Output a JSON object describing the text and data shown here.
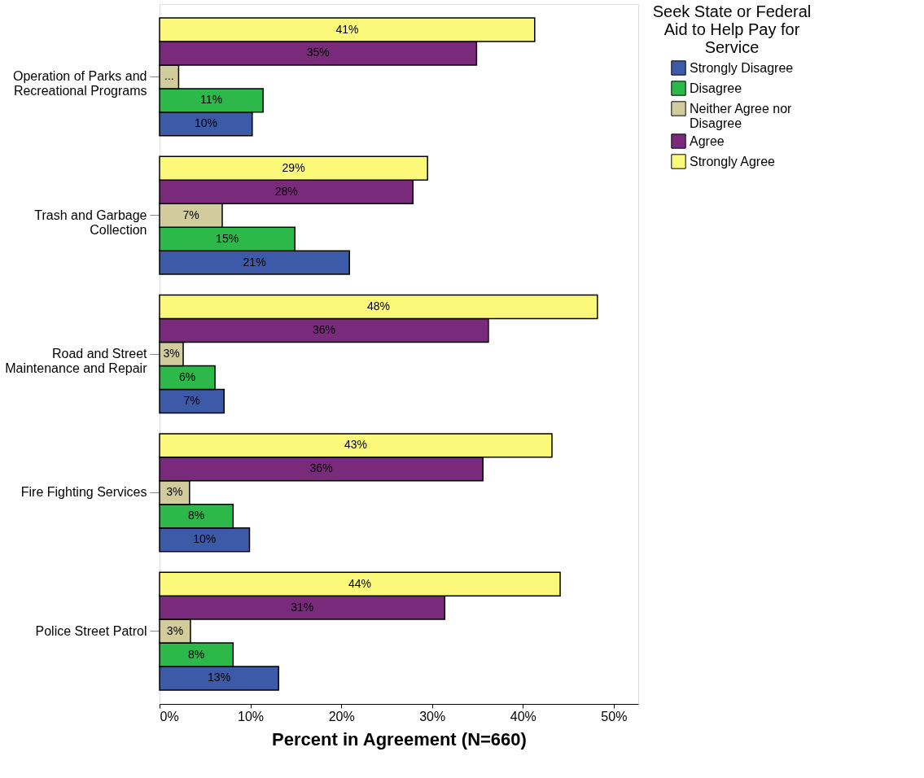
{
  "chart_data": {
    "type": "bar",
    "orientation": "horizontal",
    "categories": [
      "Operation of Parks and Recreational Programs",
      "Trash and Garbage Collection",
      "Road and Street Maintenance and Repair",
      "Fire Fighting Services",
      "Police Street Patrol"
    ],
    "xlabel": "Percent in Agreement (N=660)",
    "legend_title": "Seek State or Federal Aid to Help Pay for Service",
    "legend": "top right",
    "grid": false,
    "xlim": [
      0,
      52.7
    ],
    "xticks": [
      {
        "value": 0,
        "label": "0%"
      },
      {
        "value": 10,
        "label": "10%"
      },
      {
        "value": 20,
        "label": "20%"
      },
      {
        "value": 30,
        "label": "30%"
      },
      {
        "value": 40,
        "label": "40%"
      },
      {
        "value": 50,
        "label": "50%"
      }
    ],
    "series": [
      {
        "name": "Strongly Disagree",
        "color": "#3d5aa8",
        "values": [
          10.2,
          20.9,
          7.1,
          9.9,
          13.1
        ],
        "value_labels": [
          "10%",
          "21%",
          "7%",
          "10%",
          "13%"
        ]
      },
      {
        "name": "Disagree",
        "color": "#2db84a",
        "values": [
          11.4,
          14.9,
          6.1,
          8.1,
          8.1
        ],
        "value_labels": [
          "11%",
          "15%",
          "6%",
          "8%",
          "8%"
        ]
      },
      {
        "name": "Neither Agree nor Disagree",
        "color": "#d2cc9c",
        "values": [
          2.1,
          6.9,
          2.6,
          3.3,
          3.4
        ],
        "value_labels": [
          "...",
          "7%",
          "3%",
          "3%",
          "3%"
        ]
      },
      {
        "name": "Agree",
        "color": "#7a2a7a",
        "values": [
          34.9,
          27.9,
          36.2,
          35.6,
          31.4
        ],
        "value_labels": [
          "35%",
          "28%",
          "36%",
          "36%",
          "31%"
        ]
      },
      {
        "name": "Strongly Agree",
        "color": "#fbf87a",
        "values": [
          41.3,
          29.5,
          48.2,
          43.2,
          44.1
        ],
        "value_labels": [
          "41%",
          "29%",
          "48%",
          "43%",
          "44%"
        ]
      }
    ]
  }
}
